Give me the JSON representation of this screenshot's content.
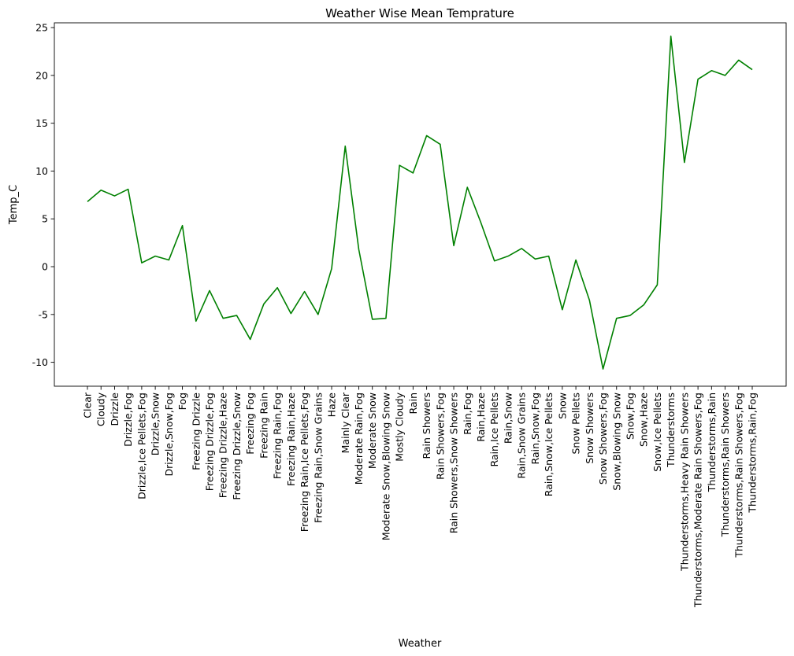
{
  "chart_data": {
    "type": "line",
    "title": "Weather Wise Mean Temprature",
    "xlabel": "Weather",
    "ylabel": "Temp_C",
    "ylim": [
      -12.5,
      25.5
    ],
    "yticks": [
      -10,
      -5,
      0,
      5,
      10,
      15,
      20,
      25
    ],
    "grid": false,
    "line_color": "#008000",
    "categories": [
      "Clear",
      "Cloudy",
      "Drizzle",
      "Drizzle,Fog",
      "Drizzle,Ice Pellets,Fog",
      "Drizzle,Snow",
      "Drizzle,Snow,Fog",
      "Fog",
      "Freezing Drizzle",
      "Freezing Drizzle,Fog",
      "Freezing Drizzle,Haze",
      "Freezing Drizzle,Snow",
      "Freezing Fog",
      "Freezing Rain",
      "Freezing Rain,Fog",
      "Freezing Rain,Haze",
      "Freezing Rain,Ice Pellets,Fog",
      "Freezing Rain,Snow Grains",
      "Haze",
      "Mainly Clear",
      "Moderate Rain,Fog",
      "Moderate Snow",
      "Moderate Snow,Blowing Snow",
      "Mostly Cloudy",
      "Rain",
      "Rain Showers",
      "Rain Showers,Fog",
      "Rain Showers,Snow Showers",
      "Rain,Fog",
      "Rain,Haze",
      "Rain,Ice Pellets",
      "Rain,Snow",
      "Rain,Snow Grains",
      "Rain,Snow,Fog",
      "Rain,Snow,Ice Pellets",
      "Snow",
      "Snow Pellets",
      "Snow Showers",
      "Snow Showers,Fog",
      "Snow,Blowing Snow",
      "Snow,Fog",
      "Snow,Haze",
      "Snow,Ice Pellets",
      "Thunderstorms",
      "Thunderstorms,Heavy Rain Showers",
      "Thunderstorms,Moderate Rain Showers,Fog",
      "Thunderstorms,Rain",
      "Thunderstorms,Rain Showers",
      "Thunderstorms,Rain Showers,Fog",
      "Thunderstorms,Rain,Fog"
    ],
    "values": [
      6.8,
      8.0,
      7.4,
      8.1,
      0.4,
      1.1,
      0.7,
      4.3,
      -5.7,
      -2.5,
      -5.4,
      -5.1,
      -7.6,
      -3.9,
      -2.2,
      -4.9,
      -2.6,
      -5.0,
      -0.2,
      12.6,
      1.8,
      -5.5,
      -5.4,
      10.6,
      9.8,
      13.7,
      12.8,
      2.2,
      8.3,
      4.6,
      0.6,
      1.1,
      1.9,
      0.8,
      1.1,
      -4.5,
      0.7,
      -3.5,
      -10.7,
      -5.4,
      -5.1,
      -4.0,
      -1.9,
      24.1,
      10.9,
      19.6,
      20.5,
      20.0,
      21.6,
      20.6
    ]
  }
}
